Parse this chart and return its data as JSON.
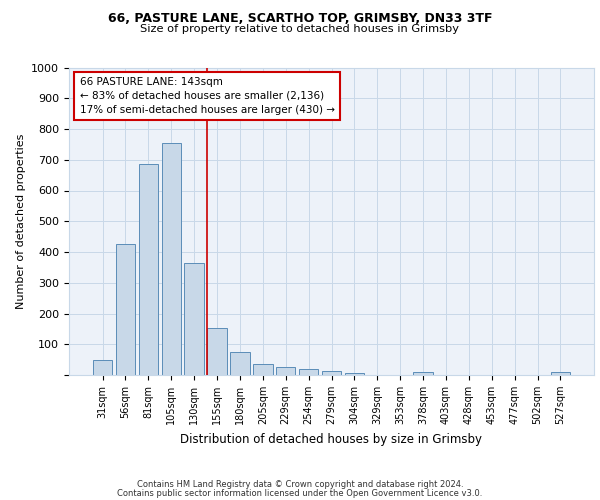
{
  "title1": "66, PASTURE LANE, SCARTHO TOP, GRIMSBY, DN33 3TF",
  "title2": "Size of property relative to detached houses in Grimsby",
  "xlabel": "Distribution of detached houses by size in Grimsby",
  "ylabel": "Number of detached properties",
  "categories": [
    "31sqm",
    "56sqm",
    "81sqm",
    "105sqm",
    "130sqm",
    "155sqm",
    "180sqm",
    "205sqm",
    "229sqm",
    "254sqm",
    "279sqm",
    "304sqm",
    "329sqm",
    "353sqm",
    "378sqm",
    "403sqm",
    "428sqm",
    "453sqm",
    "477sqm",
    "502sqm",
    "527sqm"
  ],
  "values": [
    50,
    425,
    685,
    755,
    365,
    152,
    75,
    37,
    27,
    18,
    12,
    7,
    0,
    0,
    10,
    0,
    0,
    0,
    0,
    0,
    10
  ],
  "bar_color": "#c8d8e8",
  "bar_edge_color": "#5b8db8",
  "vline_x": 4.55,
  "vline_color": "#cc0000",
  "annotation_text": "66 PASTURE LANE: 143sqm\n← 83% of detached houses are smaller (2,136)\n17% of semi-detached houses are larger (430) →",
  "annotation_box_color": "#ffffff",
  "annotation_box_edge": "#cc0000",
  "ylim": [
    0,
    1000
  ],
  "yticks": [
    0,
    100,
    200,
    300,
    400,
    500,
    600,
    700,
    800,
    900,
    1000
  ],
  "grid_color": "#c8d8e8",
  "bg_color": "#edf2f9",
  "footer1": "Contains HM Land Registry data © Crown copyright and database right 2024.",
  "footer2": "Contains public sector information licensed under the Open Government Licence v3.0."
}
